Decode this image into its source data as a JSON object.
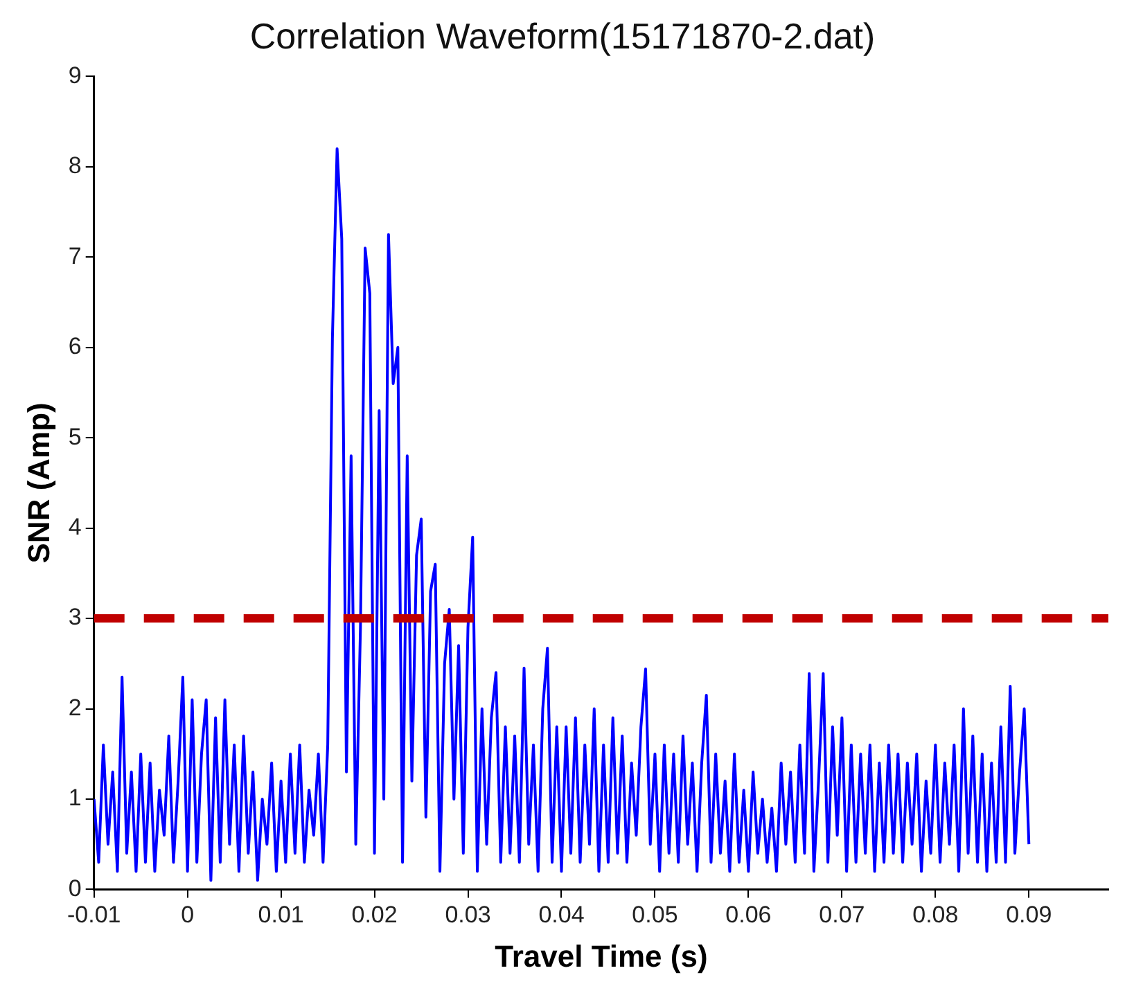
{
  "chart_data": {
    "type": "line",
    "title": "Correlation Waveform(15171870-2.dat)",
    "xlabel": "Travel Time (s)",
    "ylabel": "SNR (Amp)",
    "x": [
      -0.01,
      -0.0095,
      -0.009,
      -0.0085,
      -0.008,
      -0.0075,
      -0.007,
      -0.0065,
      -0.006,
      -0.0055,
      -0.005,
      -0.0045,
      -0.004,
      -0.0035,
      -0.003,
      -0.0025,
      -0.002,
      -0.0015,
      -0.001,
      -0.0005,
      0,
      0.0005,
      0.001,
      0.0015,
      0.002,
      0.0025,
      0.003,
      0.0035,
      0.004,
      0.0045,
      0.005,
      0.0055,
      0.006,
      0.0065,
      0.007,
      0.0075,
      0.008,
      0.0085,
      0.009,
      0.0095,
      0.01,
      0.0105,
      0.011,
      0.0115,
      0.012,
      0.0125,
      0.013,
      0.0135,
      0.014,
      0.0145,
      0.015,
      0.0155,
      0.016,
      0.0165,
      0.017,
      0.0175,
      0.018,
      0.0185,
      0.019,
      0.0195,
      0.02,
      0.0205,
      0.021,
      0.0215,
      0.022,
      0.0225,
      0.023,
      0.0235,
      0.024,
      0.0245,
      0.025,
      0.0255,
      0.026,
      0.0265,
      0.027,
      0.0275,
      0.028,
      0.0285,
      0.029,
      0.0295,
      0.03,
      0.0305,
      0.031,
      0.0315,
      0.032,
      0.0325,
      0.033,
      0.0335,
      0.034,
      0.0345,
      0.035,
      0.0355,
      0.036,
      0.0365,
      0.037,
      0.0375,
      0.038,
      0.0385,
      0.039,
      0.0395,
      0.04,
      0.0405,
      0.041,
      0.0415,
      0.042,
      0.0425,
      0.043,
      0.0435,
      0.044,
      0.0445,
      0.045,
      0.0455,
      0.046,
      0.0465,
      0.047,
      0.0475,
      0.048,
      0.0485,
      0.049,
      0.0495,
      0.05,
      0.0505,
      0.051,
      0.0515,
      0.052,
      0.0525,
      0.053,
      0.0535,
      0.054,
      0.0545,
      0.055,
      0.0555,
      0.056,
      0.0565,
      0.057,
      0.0575,
      0.058,
      0.0585,
      0.059,
      0.0595,
      0.06,
      0.0605,
      0.061,
      0.0615,
      0.062,
      0.0625,
      0.063,
      0.0635,
      0.064,
      0.0645,
      0.065,
      0.0655,
      0.066,
      0.0665,
      0.067,
      0.0675,
      0.068,
      0.0685,
      0.069,
      0.0695,
      0.07,
      0.0705,
      0.071,
      0.0715,
      0.072,
      0.0725,
      0.073,
      0.0735,
      0.074,
      0.0745,
      0.075,
      0.0755,
      0.076,
      0.0765,
      0.077,
      0.0775,
      0.078,
      0.0785,
      0.079,
      0.0795,
      0.08,
      0.0805,
      0.081,
      0.0815,
      0.082,
      0.0825,
      0.083,
      0.0835,
      0.084,
      0.0845,
      0.085,
      0.0855,
      0.086,
      0.0865,
      0.087,
      0.0875,
      0.088,
      0.0885,
      0.089,
      0.0895,
      0.09
    ],
    "series": [
      {
        "color": "#0000ff",
        "values": [
          1.0,
          0.3,
          1.6,
          0.5,
          1.3,
          0.2,
          2.35,
          0.4,
          1.3,
          0.2,
          1.5,
          0.3,
          1.4,
          0.2,
          1.1,
          0.6,
          1.7,
          0.3,
          1.2,
          2.35,
          0.2,
          2.1,
          0.3,
          1.5,
          2.1,
          0.1,
          1.9,
          0.3,
          2.1,
          0.5,
          1.6,
          0.2,
          1.7,
          0.4,
          1.3,
          0.1,
          1.0,
          0.5,
          1.4,
          0.2,
          1.2,
          0.3,
          1.5,
          0.4,
          1.6,
          0.3,
          1.1,
          0.6,
          1.5,
          0.3,
          1.6,
          6.1,
          8.2,
          7.2,
          1.3,
          4.8,
          0.5,
          2.9,
          7.1,
          6.6,
          0.4,
          5.3,
          1.0,
          7.25,
          5.6,
          6.0,
          0.3,
          4.8,
          1.2,
          3.7,
          4.1,
          0.8,
          3.3,
          3.6,
          0.2,
          2.5,
          3.1,
          1.0,
          2.7,
          0.4,
          2.9,
          3.9,
          0.2,
          2.0,
          0.5,
          1.9,
          2.4,
          0.3,
          1.8,
          0.4,
          1.7,
          0.3,
          2.45,
          0.5,
          1.6,
          0.2,
          2.0,
          2.67,
          0.3,
          1.8,
          0.2,
          1.8,
          0.4,
          1.9,
          0.3,
          1.6,
          0.5,
          2.0,
          0.2,
          1.6,
          0.3,
          1.9,
          0.4,
          1.7,
          0.3,
          1.4,
          0.6,
          1.8,
          2.44,
          0.5,
          1.5,
          0.2,
          1.6,
          0.4,
          1.5,
          0.3,
          1.7,
          0.5,
          1.4,
          0.2,
          1.4,
          2.15,
          0.3,
          1.5,
          0.4,
          1.2,
          0.2,
          1.5,
          0.3,
          1.1,
          0.2,
          1.3,
          0.4,
          1.0,
          0.3,
          0.9,
          0.2,
          1.4,
          0.5,
          1.3,
          0.3,
          1.6,
          0.4,
          2.39,
          0.2,
          1.2,
          2.39,
          0.3,
          1.8,
          0.6,
          1.9,
          0.2,
          1.6,
          0.3,
          1.5,
          0.4,
          1.6,
          0.2,
          1.4,
          0.3,
          1.6,
          0.4,
          1.5,
          0.3,
          1.4,
          0.5,
          1.5,
          0.2,
          1.2,
          0.4,
          1.6,
          0.3,
          1.4,
          0.5,
          1.6,
          0.2,
          2.0,
          0.4,
          1.7,
          0.3,
          1.5,
          0.2,
          1.4,
          0.3,
          1.8,
          0.3,
          2.25,
          0.4,
          1.3,
          2.0,
          0.5
        ]
      }
    ],
    "xlim": [
      -0.01,
      0.0985
    ],
    "xticks": [
      -0.01,
      0,
      0.01,
      0.02,
      0.03,
      0.04,
      0.05,
      0.06,
      0.07,
      0.08,
      0.09
    ],
    "ylim": [
      0,
      9
    ],
    "yticks": [
      0,
      1,
      2,
      3,
      4,
      5,
      6,
      7,
      8,
      9
    ],
    "ref_lines": [
      {
        "axis": "y",
        "value": 3,
        "color": "#c00000",
        "line_style": "dashed"
      }
    ],
    "grid": false,
    "legend": false,
    "marker": "none",
    "line_style": "solid"
  }
}
